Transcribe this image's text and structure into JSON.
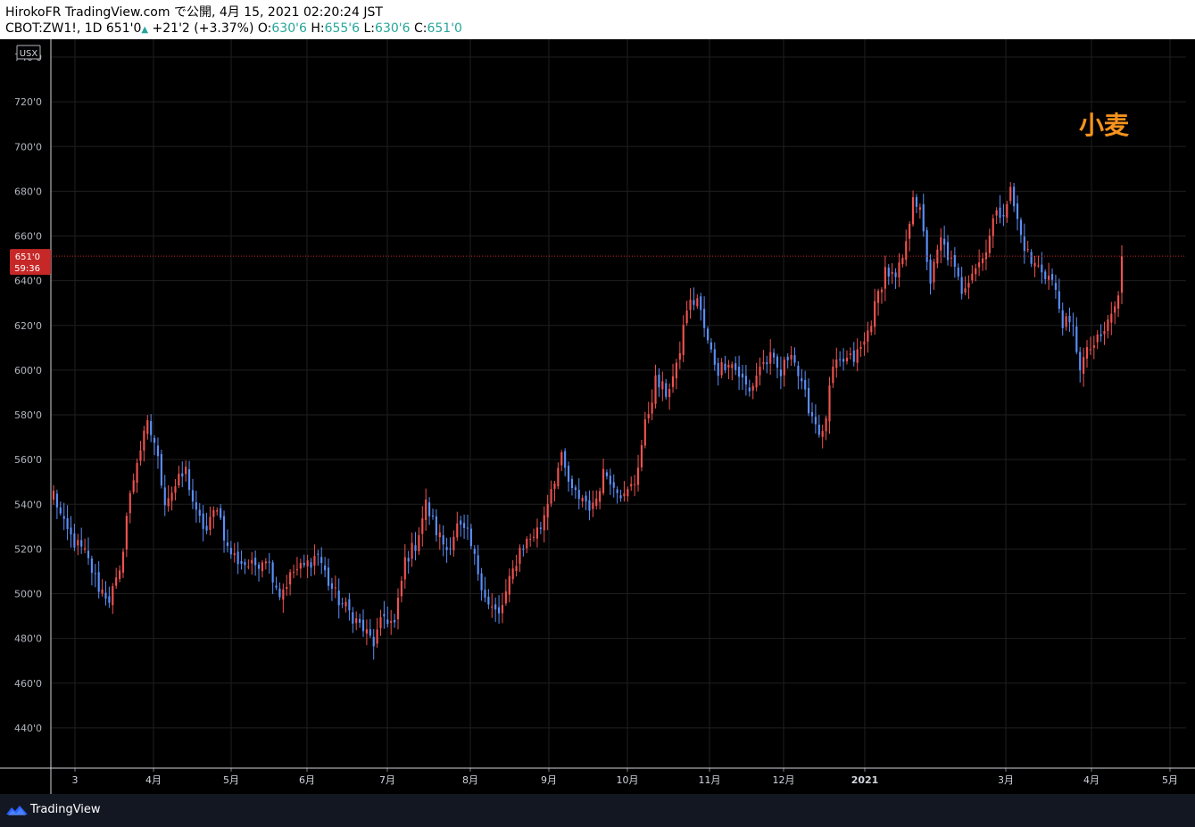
{
  "header": {
    "published": "HirokoFR TradingView.com で公開, 4月 15, 2021 02:20:24 JST",
    "symbol": "CBOT:ZW1!, 1D",
    "last": "651'0",
    "change": "+21'2 (+3.37%)",
    "o_label": "O:",
    "o_value": "630'6",
    "h_label": "H:",
    "h_value": "655'6",
    "l_label": "L:",
    "l_value": "630'6",
    "c_label": "C:",
    "c_value": "651'0"
  },
  "currency": "USX",
  "annotation": "小麦",
  "price_tag": {
    "price": "651'0",
    "countdown": "59:36"
  },
  "footer": {
    "brand": "TradingView"
  },
  "colors": {
    "up": "#ef5350",
    "down": "#5b8ff9",
    "grid": "#1f1f1f",
    "annotation": "#f7931e",
    "price_tag_bg": "#c62828",
    "price_line": "#c62828"
  },
  "chart_data": {
    "type": "candlestick",
    "y_range": [
      422,
      748
    ],
    "y_ticks": [
      "440'0",
      "460'0",
      "480'0",
      "500'0",
      "520'0",
      "540'0",
      "560'0",
      "580'0",
      "600'0",
      "620'0",
      "640'0",
      "660'0",
      "680'0",
      "700'0",
      "720'0",
      "740'0"
    ],
    "x_ticks": [
      "3",
      "4月",
      "5月",
      "6月",
      "7月",
      "8月",
      "9月",
      "10月",
      "11月",
      "12月",
      "2021",
      "3月",
      "4月",
      "5月"
    ],
    "anchors": [
      [
        0,
        545
      ],
      [
        3,
        530
      ],
      [
        6,
        523
      ],
      [
        9,
        518
      ],
      [
        13,
        503
      ],
      [
        16,
        498
      ],
      [
        19,
        508
      ],
      [
        21,
        535
      ],
      [
        24,
        560
      ],
      [
        27,
        575
      ],
      [
        29,
        568
      ],
      [
        32,
        542
      ],
      [
        35,
        548
      ],
      [
        38,
        555
      ],
      [
        41,
        535
      ],
      [
        44,
        528
      ],
      [
        47,
        540
      ],
      [
        50,
        520
      ],
      [
        53,
        515
      ],
      [
        57,
        512
      ],
      [
        61,
        517
      ],
      [
        65,
        500
      ],
      [
        69,
        510
      ],
      [
        72,
        512
      ],
      [
        76,
        518
      ],
      [
        79,
        505
      ],
      [
        82,
        497
      ],
      [
        86,
        490
      ],
      [
        89,
        484
      ],
      [
        92,
        478
      ],
      [
        95,
        490
      ],
      [
        98,
        486
      ],
      [
        101,
        515
      ],
      [
        104,
        522
      ],
      [
        107,
        540
      ],
      [
        110,
        528
      ],
      [
        113,
        520
      ],
      [
        116,
        530
      ],
      [
        119,
        526
      ],
      [
        122,
        510
      ],
      [
        125,
        495
      ],
      [
        128,
        490
      ],
      [
        131,
        505
      ],
      [
        134,
        520
      ],
      [
        137,
        525
      ],
      [
        140,
        530
      ],
      [
        143,
        548
      ],
      [
        146,
        560
      ],
      [
        149,
        545
      ],
      [
        152,
        543
      ],
      [
        155,
        538
      ],
      [
        158,
        555
      ],
      [
        161,
        550
      ],
      [
        164,
        543
      ],
      [
        167,
        550
      ],
      [
        170,
        575
      ],
      [
        173,
        595
      ],
      [
        176,
        590
      ],
      [
        179,
        600
      ],
      [
        182,
        628
      ],
      [
        185,
        632
      ],
      [
        188,
        612
      ],
      [
        191,
        600
      ],
      [
        194,
        605
      ],
      [
        197,
        598
      ],
      [
        200,
        590
      ],
      [
        203,
        602
      ],
      [
        206,
        605
      ],
      [
        209,
        598
      ],
      [
        212,
        610
      ],
      [
        215,
        592
      ],
      [
        218,
        580
      ],
      [
        221,
        570
      ],
      [
        224,
        600
      ],
      [
        227,
        604
      ],
      [
        230,
        605
      ],
      [
        233,
        612
      ],
      [
        236,
        628
      ],
      [
        239,
        645
      ],
      [
        242,
        640
      ],
      [
        245,
        655
      ],
      [
        247,
        680
      ],
      [
        249,
        670
      ],
      [
        252,
        640
      ],
      [
        255,
        658
      ],
      [
        258,
        648
      ],
      [
        261,
        636
      ],
      [
        264,
        645
      ],
      [
        267,
        650
      ],
      [
        270,
        667
      ],
      [
        273,
        672
      ],
      [
        275,
        680
      ],
      [
        278,
        660
      ],
      [
        281,
        648
      ],
      [
        284,
        645
      ],
      [
        287,
        640
      ],
      [
        290,
        622
      ],
      [
        293,
        618
      ],
      [
        295,
        602
      ],
      [
        298,
        610
      ],
      [
        301,
        614
      ],
      [
        304,
        625
      ],
      [
        306,
        632
      ],
      [
        307,
        651
      ]
    ],
    "last_close": 651
  }
}
